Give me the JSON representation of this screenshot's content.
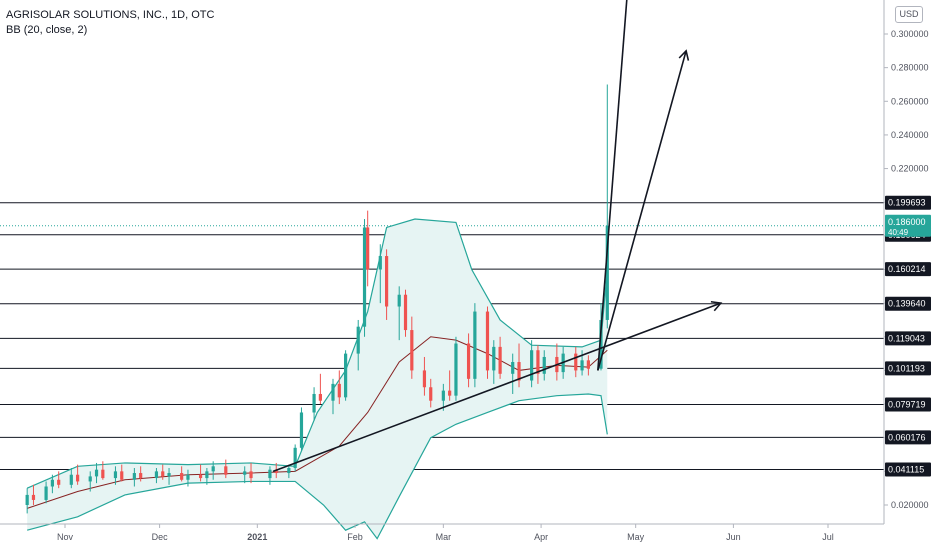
{
  "header": {
    "title": "AGRISOLAR SOLUTIONS, INC., 1D, OTC",
    "indicator": "BB (20, close, 2)"
  },
  "currency_label": "USD",
  "colors": {
    "up": "#26a69a",
    "down": "#ef5350",
    "bb_band": "#26a69a",
    "bb_basis": "#872323",
    "bb_fill": "#e6f4f3",
    "price_badge": "#26a69a",
    "level_badge": "#131722"
  },
  "chart_data": {
    "type": "candlestick",
    "title": "AGRISOLAR SOLUTIONS, INC., 1D, OTC",
    "ylim": [
      0.0,
      0.31
    ],
    "y_ticks": [
      "0.300000",
      "0.280000",
      "0.260000",
      "0.240000",
      "0.220000",
      "0.200000",
      "0.180000",
      "0.160000",
      "0.140000",
      "0.120000",
      "0.100000",
      "0.080000",
      "0.060000",
      "0.040000",
      "0.020000"
    ],
    "y_tick_values": [
      0.3,
      0.28,
      0.26,
      0.24,
      0.22,
      0.2,
      0.18,
      0.16,
      0.14,
      0.12,
      0.1,
      0.08,
      0.06,
      0.04,
      0.02
    ],
    "x_ticks": [
      {
        "label": "Nov",
        "date": "2020-11-01"
      },
      {
        "label": "Dec",
        "date": "2020-12-01"
      },
      {
        "label": "2021",
        "date": "2021-01-01"
      },
      {
        "label": "Feb",
        "date": "2021-02-01"
      },
      {
        "label": "Mar",
        "date": "2021-03-01"
      },
      {
        "label": "Apr",
        "date": "2021-04-01"
      },
      {
        "label": "May",
        "date": "2021-05-01"
      },
      {
        "label": "Jun",
        "date": "2021-06-01"
      },
      {
        "label": "Jul",
        "date": "2021-07-01"
      }
    ],
    "current_price": {
      "value": 0.186,
      "label": "0.186000",
      "countdown": "40:49"
    },
    "horizontal_levels": [
      {
        "value": 0.199693,
        "label": "0.199693"
      },
      {
        "value": 0.180624,
        "label": "0.180624"
      },
      {
        "value": 0.160214,
        "label": "0.160214"
      },
      {
        "value": 0.13964,
        "label": "0.139640"
      },
      {
        "value": 0.119043,
        "label": "0.119043"
      },
      {
        "value": 0.101193,
        "label": "0.101193"
      },
      {
        "value": 0.079719,
        "label": "0.079719"
      },
      {
        "value": 0.060176,
        "label": "0.060176"
      },
      {
        "value": 0.041115,
        "label": "0.041115"
      }
    ],
    "candles": [
      {
        "d": "2020-10-20",
        "o": 0.02,
        "h": 0.03,
        "l": 0.015,
        "c": 0.026
      },
      {
        "d": "2020-10-22",
        "o": 0.026,
        "h": 0.032,
        "l": 0.02,
        "c": 0.023
      },
      {
        "d": "2020-10-26",
        "o": 0.023,
        "h": 0.034,
        "l": 0.021,
        "c": 0.031
      },
      {
        "d": "2020-10-28",
        "o": 0.031,
        "h": 0.038,
        "l": 0.027,
        "c": 0.035
      },
      {
        "d": "2020-10-30",
        "o": 0.035,
        "h": 0.04,
        "l": 0.03,
        "c": 0.032
      },
      {
        "d": "2020-11-03",
        "o": 0.032,
        "h": 0.042,
        "l": 0.03,
        "c": 0.038
      },
      {
        "d": "2020-11-05",
        "o": 0.038,
        "h": 0.044,
        "l": 0.032,
        "c": 0.034
      },
      {
        "d": "2020-11-09",
        "o": 0.034,
        "h": 0.04,
        "l": 0.028,
        "c": 0.037
      },
      {
        "d": "2020-11-11",
        "o": 0.037,
        "h": 0.045,
        "l": 0.033,
        "c": 0.041
      },
      {
        "d": "2020-11-13",
        "o": 0.041,
        "h": 0.046,
        "l": 0.035,
        "c": 0.036
      },
      {
        "d": "2020-11-17",
        "o": 0.036,
        "h": 0.043,
        "l": 0.032,
        "c": 0.04
      },
      {
        "d": "2020-11-19",
        "o": 0.04,
        "h": 0.044,
        "l": 0.034,
        "c": 0.035
      },
      {
        "d": "2020-11-23",
        "o": 0.035,
        "h": 0.042,
        "l": 0.031,
        "c": 0.039
      },
      {
        "d": "2020-11-25",
        "o": 0.039,
        "h": 0.043,
        "l": 0.034,
        "c": 0.036
      },
      {
        "d": "2020-11-30",
        "o": 0.036,
        "h": 0.042,
        "l": 0.033,
        "c": 0.04
      },
      {
        "d": "2020-12-02",
        "o": 0.04,
        "h": 0.044,
        "l": 0.035,
        "c": 0.037
      },
      {
        "d": "2020-12-04",
        "o": 0.037,
        "h": 0.042,
        "l": 0.032,
        "c": 0.039
      },
      {
        "d": "2020-12-08",
        "o": 0.039,
        "h": 0.043,
        "l": 0.034,
        "c": 0.035
      },
      {
        "d": "2020-12-10",
        "o": 0.035,
        "h": 0.041,
        "l": 0.031,
        "c": 0.038
      },
      {
        "d": "2020-12-14",
        "o": 0.038,
        "h": 0.044,
        "l": 0.034,
        "c": 0.036
      },
      {
        "d": "2020-12-16",
        "o": 0.036,
        "h": 0.042,
        "l": 0.032,
        "c": 0.04
      },
      {
        "d": "2020-12-18",
        "o": 0.04,
        "h": 0.046,
        "l": 0.035,
        "c": 0.043
      },
      {
        "d": "2020-12-22",
        "o": 0.043,
        "h": 0.047,
        "l": 0.036,
        "c": 0.038
      },
      {
        "d": "2020-12-28",
        "o": 0.038,
        "h": 0.043,
        "l": 0.033,
        "c": 0.04
      },
      {
        "d": "2020-12-30",
        "o": 0.04,
        "h": 0.045,
        "l": 0.033,
        "c": 0.036
      },
      {
        "d": "2021-01-05",
        "o": 0.036,
        "h": 0.043,
        "l": 0.032,
        "c": 0.041
      },
      {
        "d": "2021-01-07",
        "o": 0.041,
        "h": 0.045,
        "l": 0.036,
        "c": 0.039
      },
      {
        "d": "2021-01-11",
        "o": 0.039,
        "h": 0.044,
        "l": 0.036,
        "c": 0.042
      },
      {
        "d": "2021-01-13",
        "o": 0.042,
        "h": 0.056,
        "l": 0.04,
        "c": 0.054
      },
      {
        "d": "2021-01-15",
        "o": 0.054,
        "h": 0.078,
        "l": 0.052,
        "c": 0.075
      },
      {
        "d": "2021-01-19",
        "o": 0.075,
        "h": 0.09,
        "l": 0.07,
        "c": 0.086
      },
      {
        "d": "2021-01-21",
        "o": 0.086,
        "h": 0.098,
        "l": 0.08,
        "c": 0.082
      },
      {
        "d": "2021-01-25",
        "o": 0.082,
        "h": 0.095,
        "l": 0.074,
        "c": 0.092
      },
      {
        "d": "2021-01-27",
        "o": 0.092,
        "h": 0.1,
        "l": 0.08,
        "c": 0.084
      },
      {
        "d": "2021-01-29",
        "o": 0.084,
        "h": 0.112,
        "l": 0.082,
        "c": 0.11
      },
      {
        "d": "2021-02-02",
        "o": 0.11,
        "h": 0.13,
        "l": 0.1,
        "c": 0.126
      },
      {
        "d": "2021-02-04",
        "o": 0.126,
        "h": 0.19,
        "l": 0.12,
        "c": 0.185
      },
      {
        "d": "2021-02-05",
        "o": 0.185,
        "h": 0.195,
        "l": 0.15,
        "c": 0.16
      },
      {
        "d": "2021-02-09",
        "o": 0.16,
        "h": 0.175,
        "l": 0.14,
        "c": 0.168
      },
      {
        "d": "2021-02-11",
        "o": 0.168,
        "h": 0.172,
        "l": 0.13,
        "c": 0.138
      },
      {
        "d": "2021-02-15",
        "o": 0.138,
        "h": 0.15,
        "l": 0.118,
        "c": 0.145
      },
      {
        "d": "2021-02-17",
        "o": 0.145,
        "h": 0.148,
        "l": 0.12,
        "c": 0.124
      },
      {
        "d": "2021-02-19",
        "o": 0.124,
        "h": 0.132,
        "l": 0.095,
        "c": 0.1
      },
      {
        "d": "2021-02-23",
        "o": 0.1,
        "h": 0.108,
        "l": 0.085,
        "c": 0.09
      },
      {
        "d": "2021-02-25",
        "o": 0.09,
        "h": 0.095,
        "l": 0.078,
        "c": 0.082
      },
      {
        "d": "2021-03-01",
        "o": 0.082,
        "h": 0.092,
        "l": 0.076,
        "c": 0.088
      },
      {
        "d": "2021-03-03",
        "o": 0.088,
        "h": 0.1,
        "l": 0.082,
        "c": 0.085
      },
      {
        "d": "2021-03-05",
        "o": 0.085,
        "h": 0.12,
        "l": 0.082,
        "c": 0.116
      },
      {
        "d": "2021-03-09",
        "o": 0.116,
        "h": 0.122,
        "l": 0.09,
        "c": 0.095
      },
      {
        "d": "2021-03-11",
        "o": 0.095,
        "h": 0.14,
        "l": 0.09,
        "c": 0.135
      },
      {
        "d": "2021-03-15",
        "o": 0.135,
        "h": 0.138,
        "l": 0.095,
        "c": 0.1
      },
      {
        "d": "2021-03-17",
        "o": 0.1,
        "h": 0.118,
        "l": 0.092,
        "c": 0.114
      },
      {
        "d": "2021-03-19",
        "o": 0.114,
        "h": 0.12,
        "l": 0.095,
        "c": 0.098
      },
      {
        "d": "2021-03-23",
        "o": 0.098,
        "h": 0.11,
        "l": 0.086,
        "c": 0.105
      },
      {
        "d": "2021-03-25",
        "o": 0.105,
        "h": 0.116,
        "l": 0.09,
        "c": 0.094
      },
      {
        "d": "2021-03-29",
        "o": 0.094,
        "h": 0.118,
        "l": 0.09,
        "c": 0.112
      },
      {
        "d": "2021-03-31",
        "o": 0.112,
        "h": 0.115,
        "l": 0.092,
        "c": 0.098
      },
      {
        "d": "2021-04-02",
        "o": 0.098,
        "h": 0.112,
        "l": 0.094,
        "c": 0.108
      },
      {
        "d": "2021-04-06",
        "o": 0.108,
        "h": 0.116,
        "l": 0.094,
        "c": 0.099
      },
      {
        "d": "2021-04-08",
        "o": 0.099,
        "h": 0.114,
        "l": 0.095,
        "c": 0.11
      },
      {
        "d": "2021-04-12",
        "o": 0.11,
        "h": 0.114,
        "l": 0.096,
        "c": 0.1
      },
      {
        "d": "2021-04-14",
        "o": 0.1,
        "h": 0.112,
        "l": 0.097,
        "c": 0.106
      },
      {
        "d": "2021-04-16",
        "o": 0.106,
        "h": 0.109,
        "l": 0.097,
        "c": 0.101
      },
      {
        "d": "2021-04-20",
        "o": 0.101,
        "h": 0.14,
        "l": 0.1,
        "c": 0.13
      },
      {
        "d": "2021-04-22",
        "o": 0.13,
        "h": 0.27,
        "l": 0.125,
        "c": 0.186
      }
    ],
    "bollinger": {
      "upper": [
        {
          "d": "2020-10-20",
          "v": 0.03
        },
        {
          "d": "2020-11-05",
          "v": 0.043
        },
        {
          "d": "2020-11-20",
          "v": 0.045
        },
        {
          "d": "2020-12-10",
          "v": 0.044
        },
        {
          "d": "2020-12-30",
          "v": 0.045
        },
        {
          "d": "2021-01-13",
          "v": 0.043
        },
        {
          "d": "2021-01-20",
          "v": 0.075
        },
        {
          "d": "2021-01-29",
          "v": 0.1
        },
        {
          "d": "2021-02-05",
          "v": 0.135
        },
        {
          "d": "2021-02-11",
          "v": 0.185
        },
        {
          "d": "2021-02-20",
          "v": 0.19
        },
        {
          "d": "2021-03-05",
          "v": 0.188
        },
        {
          "d": "2021-03-10",
          "v": 0.16
        },
        {
          "d": "2021-03-19",
          "v": 0.13
        },
        {
          "d": "2021-03-29",
          "v": 0.115
        },
        {
          "d": "2021-04-14",
          "v": 0.114
        },
        {
          "d": "2021-04-20",
          "v": 0.118
        },
        {
          "d": "2021-04-22",
          "v": 0.16
        }
      ],
      "basis": [
        {
          "d": "2020-10-20",
          "v": 0.018
        },
        {
          "d": "2020-11-05",
          "v": 0.028
        },
        {
          "d": "2020-11-20",
          "v": 0.035
        },
        {
          "d": "2020-12-10",
          "v": 0.038
        },
        {
          "d": "2020-12-30",
          "v": 0.039
        },
        {
          "d": "2021-01-13",
          "v": 0.04
        },
        {
          "d": "2021-01-27",
          "v": 0.055
        },
        {
          "d": "2021-02-05",
          "v": 0.075
        },
        {
          "d": "2021-02-15",
          "v": 0.105
        },
        {
          "d": "2021-02-25",
          "v": 0.12
        },
        {
          "d": "2021-03-05",
          "v": 0.118
        },
        {
          "d": "2021-03-15",
          "v": 0.11
        },
        {
          "d": "2021-03-25",
          "v": 0.1
        },
        {
          "d": "2021-04-06",
          "v": 0.103
        },
        {
          "d": "2021-04-16",
          "v": 0.102
        },
        {
          "d": "2021-04-22",
          "v": 0.112
        }
      ],
      "lower": [
        {
          "d": "2020-10-20",
          "v": 0.005
        },
        {
          "d": "2020-11-05",
          "v": 0.013
        },
        {
          "d": "2020-11-20",
          "v": 0.026
        },
        {
          "d": "2020-12-10",
          "v": 0.033
        },
        {
          "d": "2020-12-30",
          "v": 0.034
        },
        {
          "d": "2021-01-13",
          "v": 0.034
        },
        {
          "d": "2021-01-22",
          "v": 0.02
        },
        {
          "d": "2021-01-29",
          "v": 0.005
        },
        {
          "d": "2021-02-04",
          "v": 0.01
        },
        {
          "d": "2021-02-08",
          "v": 0.0
        },
        {
          "d": "2021-02-15",
          "v": 0.025
        },
        {
          "d": "2021-02-25",
          "v": 0.06
        },
        {
          "d": "2021-03-05",
          "v": 0.068
        },
        {
          "d": "2021-03-15",
          "v": 0.075
        },
        {
          "d": "2021-03-25",
          "v": 0.082
        },
        {
          "d": "2021-04-06",
          "v": 0.085
        },
        {
          "d": "2021-04-16",
          "v": 0.086
        },
        {
          "d": "2021-04-20",
          "v": 0.085
        },
        {
          "d": "2021-04-22",
          "v": 0.062
        }
      ]
    },
    "trendline": {
      "start": {
        "d": "2021-01-06",
        "v": 0.04
      },
      "end": {
        "d": "2021-05-28",
        "v": 0.14
      }
    },
    "arrows": [
      {
        "start": {
          "d": "2021-04-19",
          "v": 0.1
        },
        "end": {
          "d": "2021-04-29",
          "v": 0.34
        }
      },
      {
        "start": {
          "d": "2021-04-19",
          "v": 0.1
        },
        "end": {
          "d": "2021-05-17",
          "v": 0.29
        }
      }
    ]
  }
}
